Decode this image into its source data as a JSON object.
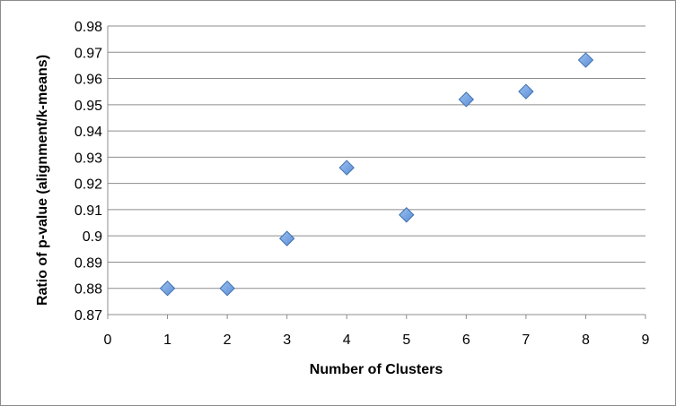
{
  "chart_data": {
    "type": "scatter",
    "title": "",
    "xlabel": "Number of Clusters",
    "ylabel": "Ratio of p-value (alignment/k-means)",
    "xlim": [
      0,
      9
    ],
    "ylim": [
      0.87,
      0.98
    ],
    "x_ticks": [
      "0",
      "1",
      "2",
      "3",
      "4",
      "5",
      "6",
      "7",
      "8",
      "9"
    ],
    "y_ticks": [
      "0.87",
      "0.88",
      "0.89",
      "0.9",
      "0.91",
      "0.92",
      "0.93",
      "0.94",
      "0.95",
      "0.96",
      "0.97",
      "0.98"
    ],
    "grid": true,
    "legend": "none",
    "marker": "diamond",
    "marker_color": "#5b8fd6",
    "series": [
      {
        "x": [
          1,
          2,
          3,
          4,
          5,
          6,
          7,
          8
        ],
        "y": [
          0.88,
          0.88,
          0.899,
          0.926,
          0.908,
          0.952,
          0.955,
          0.967
        ]
      }
    ]
  }
}
